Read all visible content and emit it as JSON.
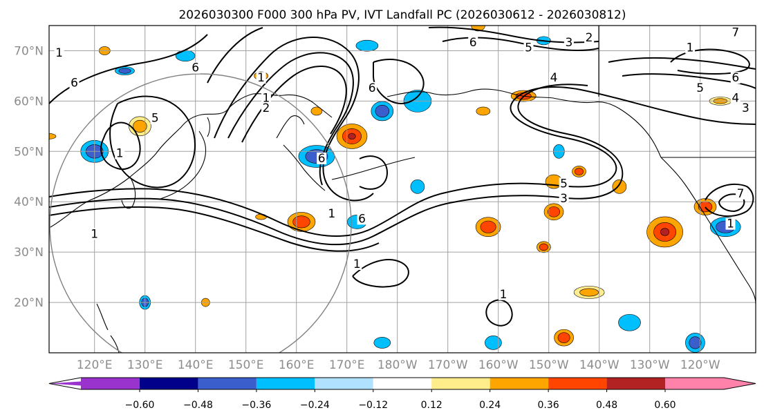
{
  "title": "2026030300 F000 300 hPa PV, IVT Landfall PC (2026030612 - 2026030812)",
  "chart_data": {
    "type": "map",
    "title": "2026030300 F000 300 hPa PV, IVT Landfall PC (2026030612 - 2026030812)",
    "variable_fill": "IVT Landfall PC",
    "variable_contour": "300 hPa PV",
    "lon_range": [
      111,
      251
    ],
    "lat_range": [
      10,
      75
    ],
    "lat_ticks": [
      {
        "value": 70,
        "label": "70°N"
      },
      {
        "value": 60,
        "label": "60°N"
      },
      {
        "value": 50,
        "label": "50°N"
      },
      {
        "value": 40,
        "label": "40°N"
      },
      {
        "value": 30,
        "label": "30°N"
      },
      {
        "value": 20,
        "label": "20°N"
      }
    ],
    "lon_ticks": [
      {
        "value": 120,
        "label": "120°E"
      },
      {
        "value": 130,
        "label": "130°E"
      },
      {
        "value": 140,
        "label": "140°E"
      },
      {
        "value": 150,
        "label": "150°E"
      },
      {
        "value": 160,
        "label": "160°E"
      },
      {
        "value": 170,
        "label": "170°E"
      },
      {
        "value": 180,
        "label": "180°W"
      },
      {
        "value": 190,
        "label": "170°W"
      },
      {
        "value": 200,
        "label": "160°W"
      },
      {
        "value": 210,
        "label": "150°W"
      },
      {
        "value": 220,
        "label": "140°W"
      },
      {
        "value": 230,
        "label": "130°W"
      },
      {
        "value": 240,
        "label": "120°W"
      }
    ],
    "colorbar": {
      "levels": [
        -0.72,
        -0.6,
        -0.48,
        -0.36,
        -0.24,
        -0.12,
        0.12,
        0.24,
        0.36,
        0.48,
        0.6,
        0.72
      ],
      "tick_labels": [
        "−0.60",
        "−0.48",
        "−0.36",
        "−0.24",
        "−0.12",
        "0.12",
        "0.24",
        "0.36",
        "0.48",
        "0.60"
      ],
      "colors": [
        "#9a32cd",
        "#00008b",
        "#3a5fcd",
        "#00bfff",
        "#b0e2ff",
        "#ffffff",
        "#ffec8b",
        "#ffa500",
        "#ff4500",
        "#b22222",
        "#ff82ab"
      ],
      "extend": "both"
    },
    "contour_labels": [
      {
        "text": "6",
        "lon": 116,
        "lat": 63
      },
      {
        "text": "6",
        "lon": 140,
        "lat": 66
      },
      {
        "text": "1",
        "lon": 113,
        "lat": 69
      },
      {
        "text": "5",
        "lon": 132,
        "lat": 56
      },
      {
        "text": "1",
        "lon": 125,
        "lat": 49
      },
      {
        "text": "1",
        "lon": 153,
        "lat": 64
      },
      {
        "text": "1",
        "lon": 154,
        "lat": 60
      },
      {
        "text": "2",
        "lon": 154,
        "lat": 58
      },
      {
        "text": "6",
        "lon": 165,
        "lat": 48
      },
      {
        "text": "6",
        "lon": 175,
        "lat": 62
      },
      {
        "text": "6",
        "lon": 173,
        "lat": 36
      },
      {
        "text": "1",
        "lon": 172,
        "lat": 27
      },
      {
        "text": "6",
        "lon": 195,
        "lat": 71
      },
      {
        "text": "5",
        "lon": 206,
        "lat": 70
      },
      {
        "text": "3",
        "lon": 214,
        "lat": 71
      },
      {
        "text": "2",
        "lon": 218,
        "lat": 72
      },
      {
        "text": "4",
        "lon": 211,
        "lat": 64
      },
      {
        "text": "5",
        "lon": 213,
        "lat": 43
      },
      {
        "text": "3",
        "lon": 213,
        "lat": 40
      },
      {
        "text": "5",
        "lon": 240,
        "lat": 62
      },
      {
        "text": "6",
        "lon": 247,
        "lat": 64
      },
      {
        "text": "4",
        "lon": 247,
        "lat": 60
      },
      {
        "text": "3",
        "lon": 249,
        "lat": 58
      },
      {
        "text": "1",
        "lon": 238,
        "lat": 70
      },
      {
        "text": "7",
        "lon": 247,
        "lat": 73
      },
      {
        "text": "1",
        "lon": 246,
        "lat": 35
      },
      {
        "text": "7",
        "lon": 248,
        "lat": 41
      },
      {
        "text": "1",
        "lon": 120,
        "lat": 33
      },
      {
        "text": "1",
        "lon": 201,
        "lat": 21
      },
      {
        "text": "1",
        "lon": 167,
        "lat": 37
      }
    ]
  }
}
